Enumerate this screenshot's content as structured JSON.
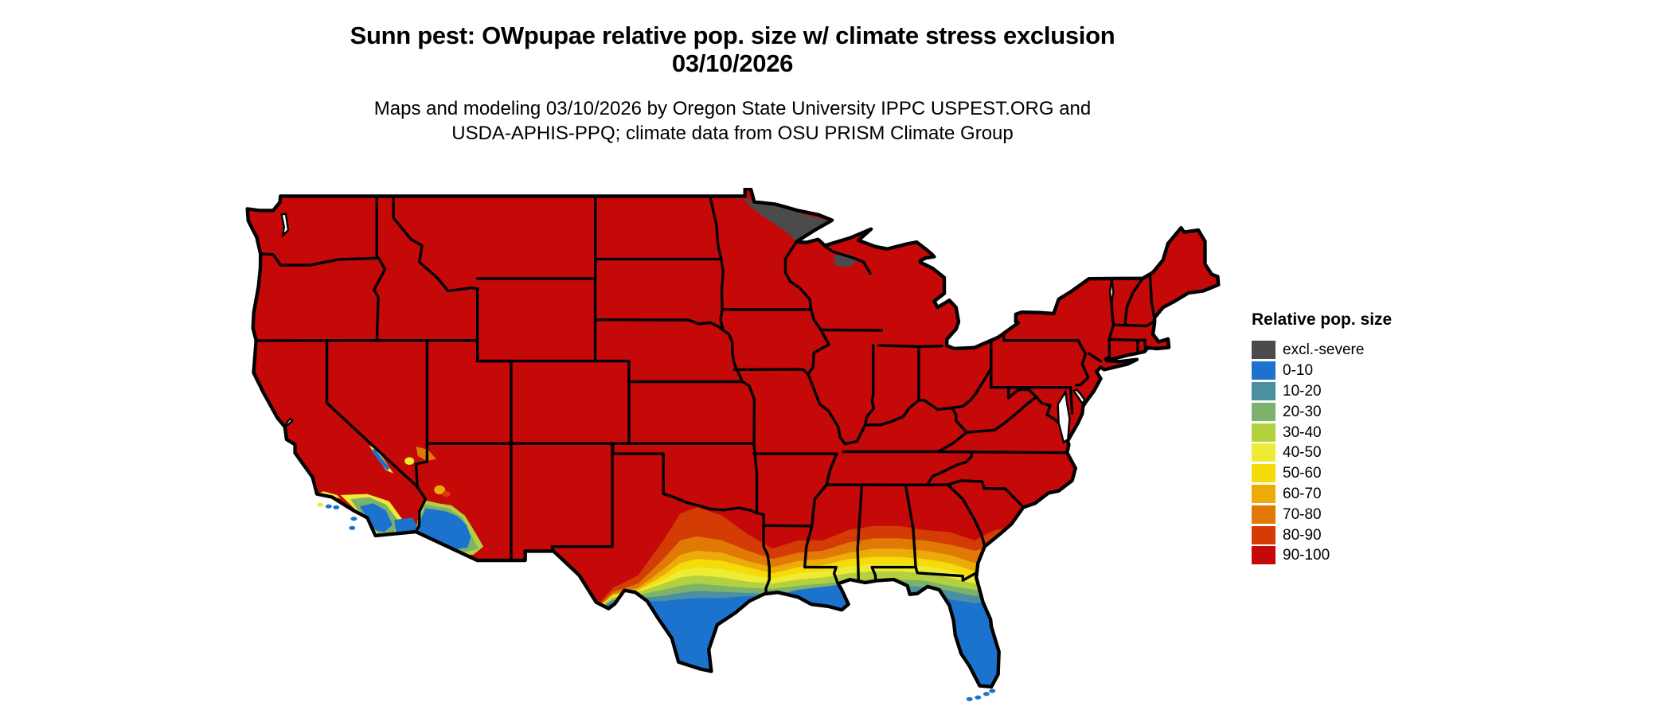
{
  "title": {
    "line1": "Sunn pest: OWpupae relative pop. size w/ climate stress exclusion",
    "line2": "03/10/2026"
  },
  "subtitle": {
    "line1": "Maps and modeling 03/10/2026 by Oregon State University IPPC USPEST.ORG and",
    "line2": "USDA-APHIS-PPQ; climate data from OSU PRISM Climate Group"
  },
  "legend": {
    "title": "Relative pop. size",
    "items": [
      {
        "label": "excl.-severe",
        "color": "#4B4B4B"
      },
      {
        "label": "0-10",
        "color": "#1C73CD"
      },
      {
        "label": "10-20",
        "color": "#4B90A1"
      },
      {
        "label": "20-30",
        "color": "#7CB26C"
      },
      {
        "label": "30-40",
        "color": "#B3D03F"
      },
      {
        "label": "40-50",
        "color": "#EDEB33"
      },
      {
        "label": "50-60",
        "color": "#F5DC08"
      },
      {
        "label": "60-70",
        "color": "#ECAB09"
      },
      {
        "label": "70-80",
        "color": "#E07906"
      },
      {
        "label": "80-90",
        "color": "#D33C05"
      },
      {
        "label": "90-100",
        "color": "#C50808"
      }
    ]
  },
  "map": {
    "background_color": "#FFFFFF",
    "border_color": "#000000",
    "dominant_class": "90-100",
    "excluded_severe_areas": "northeastern Minnesota and northern Wisconsin",
    "low_population_gradient_areas": "southern Texas, Gulf Coast, Louisiana, Florida peninsula, southwestern Arizona, southern California"
  }
}
